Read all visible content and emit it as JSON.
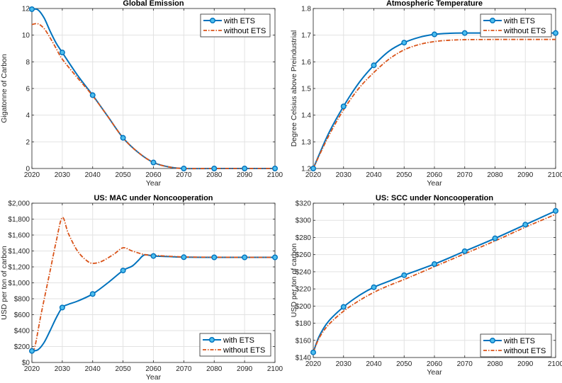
{
  "chart_data": [
    {
      "type": "line",
      "title": "Global Emission",
      "xlabel": "Year",
      "ylabel": "Gigatonne of Carbon",
      "xlim": [
        2020,
        2100
      ],
      "ylim": [
        0,
        12
      ],
      "xticks": [
        2020,
        2030,
        2040,
        2050,
        2060,
        2070,
        2080,
        2090,
        2100
      ],
      "yticks": [
        0,
        2,
        4,
        6,
        8,
        10,
        12
      ],
      "ytick_labels": [
        "0",
        "2",
        "4",
        "6",
        "8",
        "10",
        "12"
      ],
      "legend_position": "top-right",
      "series": [
        {
          "name": "with ETS",
          "x": [
            2020,
            2022,
            2024,
            2026,
            2028,
            2030,
            2035,
            2040,
            2045,
            2050,
            2055,
            2060,
            2065,
            2070,
            2080,
            2090,
            2100
          ],
          "y": [
            11.95,
            11.9,
            11.3,
            10.3,
            9.4,
            8.7,
            7.0,
            5.5,
            3.9,
            2.3,
            1.2,
            0.45,
            0.12,
            0,
            0,
            0,
            0
          ],
          "markers_x": [
            2020,
            2030,
            2040,
            2050,
            2060,
            2070,
            2080,
            2090,
            2100
          ],
          "markers_y": [
            11.95,
            8.7,
            5.5,
            2.3,
            0.45,
            0,
            0,
            0,
            0
          ]
        },
        {
          "name": "without ETS",
          "x": [
            2020,
            2022,
            2024,
            2026,
            2028,
            2030,
            2035,
            2040,
            2045,
            2050,
            2055,
            2060,
            2065,
            2070,
            2080,
            2090,
            2100
          ],
          "y": [
            10.8,
            10.85,
            10.5,
            9.8,
            9.0,
            8.2,
            6.8,
            5.45,
            3.9,
            2.3,
            1.2,
            0.45,
            0.12,
            0,
            0,
            0,
            0
          ]
        }
      ]
    },
    {
      "type": "line",
      "title": "Atmospheric Temperature",
      "xlabel": "Year",
      "ylabel": "Degree Celsius above Preindustrial",
      "xlim": [
        2020,
        2100
      ],
      "ylim": [
        1.2,
        1.8
      ],
      "xticks": [
        2020,
        2030,
        2040,
        2050,
        2060,
        2070,
        2080,
        2090,
        2100
      ],
      "yticks": [
        1.2,
        1.3,
        1.4,
        1.5,
        1.6,
        1.7,
        1.8
      ],
      "ytick_labels": [
        "1.2",
        "1.3",
        "1.4",
        "1.5",
        "1.6",
        "1.7",
        "1.8"
      ],
      "legend_position": "top-right",
      "series": [
        {
          "name": "with ETS",
          "x": [
            2020,
            2025,
            2030,
            2035,
            2040,
            2045,
            2050,
            2055,
            2060,
            2065,
            2070,
            2080,
            2090,
            2100
          ],
          "y": [
            1.2,
            1.33,
            1.433,
            1.52,
            1.587,
            1.64,
            1.672,
            1.692,
            1.703,
            1.707,
            1.708,
            1.708,
            1.708,
            1.708
          ],
          "markers_x": [
            2020,
            2030,
            2040,
            2050,
            2060,
            2070,
            2080,
            2090,
            2100
          ],
          "markers_y": [
            1.2,
            1.433,
            1.587,
            1.672,
            1.703,
            1.708,
            1.708,
            1.708,
            1.708
          ]
        },
        {
          "name": "without ETS",
          "x": [
            2020,
            2025,
            2030,
            2035,
            2040,
            2045,
            2050,
            2055,
            2060,
            2065,
            2070,
            2080,
            2090,
            2100
          ],
          "y": [
            1.2,
            1.32,
            1.42,
            1.5,
            1.56,
            1.61,
            1.645,
            1.665,
            1.676,
            1.681,
            1.683,
            1.684,
            1.684,
            1.684
          ]
        }
      ]
    },
    {
      "type": "line",
      "title": "US: MAC under Noncooperation",
      "xlabel": "Year",
      "ylabel": "USD per ton of carbon",
      "xlim": [
        2020,
        2100
      ],
      "ylim": [
        0,
        2000
      ],
      "xticks": [
        2020,
        2030,
        2040,
        2050,
        2060,
        2070,
        2080,
        2090,
        2100
      ],
      "yticks": [
        0,
        200,
        400,
        600,
        800,
        1000,
        1200,
        1400,
        1600,
        1800,
        2000
      ],
      "ytick_labels": [
        "$0",
        "$200",
        "$400",
        "$600",
        "$800",
        "$1,000",
        "$1,200",
        "$1,400",
        "$1,600",
        "$1,800",
        "$2,000"
      ],
      "legend_position": "bottom-right",
      "series": [
        {
          "name": "with ETS",
          "x": [
            2020,
            2022,
            2024,
            2026,
            2028,
            2030,
            2032,
            2035,
            2040,
            2045,
            2050,
            2053,
            2055,
            2057,
            2060,
            2065,
            2070,
            2080,
            2090,
            2100
          ],
          "y": [
            145,
            160,
            250,
            400,
            560,
            690,
            730,
            770,
            860,
            1000,
            1155,
            1210,
            1280,
            1350,
            1337,
            1330,
            1322,
            1320,
            1320,
            1320
          ],
          "markers_x": [
            2020,
            2030,
            2040,
            2050,
            2060,
            2070,
            2080,
            2090,
            2100
          ],
          "markers_y": [
            145,
            690,
            860,
            1155,
            1337,
            1322,
            1320,
            1320,
            1320
          ]
        },
        {
          "name": "without ETS",
          "x": [
            2020,
            2021,
            2023,
            2026,
            2028,
            2030,
            2032,
            2035,
            2038,
            2040,
            2043,
            2047,
            2050,
            2053,
            2057,
            2060,
            2070,
            2080,
            2090,
            2100
          ],
          "y": [
            145,
            200,
            600,
            1150,
            1520,
            1820,
            1620,
            1400,
            1280,
            1245,
            1270,
            1360,
            1440,
            1400,
            1355,
            1345,
            1325,
            1322,
            1320,
            1320
          ]
        }
      ]
    },
    {
      "type": "line",
      "title": "US: SCC under Noncooperation",
      "xlabel": "Year",
      "ylabel": "USD per ton of carbon",
      "xlim": [
        2020,
        2100
      ],
      "ylim": [
        140,
        320
      ],
      "xticks": [
        2020,
        2030,
        2040,
        2050,
        2060,
        2070,
        2080,
        2090,
        2100
      ],
      "yticks": [
        140,
        160,
        180,
        200,
        220,
        240,
        260,
        280,
        300,
        320
      ],
      "ytick_labels": [
        "$140",
        "$160",
        "$180",
        "$200",
        "$220",
        "$240",
        "$260",
        "$280",
        "$300",
        "$320"
      ],
      "legend_position": "bottom-right",
      "series": [
        {
          "name": "with ETS",
          "x": [
            2020,
            2022,
            2025,
            2030,
            2035,
            2040,
            2045,
            2050,
            2060,
            2070,
            2080,
            2090,
            2100
          ],
          "y": [
            146,
            165,
            182,
            199,
            212,
            222,
            229,
            236,
            249,
            264,
            279,
            295,
            311
          ],
          "markers_x": [
            2020,
            2030,
            2040,
            2050,
            2060,
            2070,
            2080,
            2090,
            2100
          ],
          "markers_y": [
            146,
            199,
            222,
            236,
            249,
            264,
            279,
            295,
            311
          ]
        },
        {
          "name": "without ETS",
          "x": [
            2020,
            2022,
            2025,
            2030,
            2035,
            2040,
            2045,
            2050,
            2060,
            2070,
            2080,
            2090,
            2100
          ],
          "y": [
            146,
            163,
            178,
            194,
            206,
            216,
            224,
            231,
            246,
            261,
            276,
            292,
            307
          ]
        }
      ]
    }
  ],
  "colors": {
    "with_ets": "#0072BD",
    "without_ets": "#D95319",
    "marker_fill": "#4DBEEE"
  }
}
